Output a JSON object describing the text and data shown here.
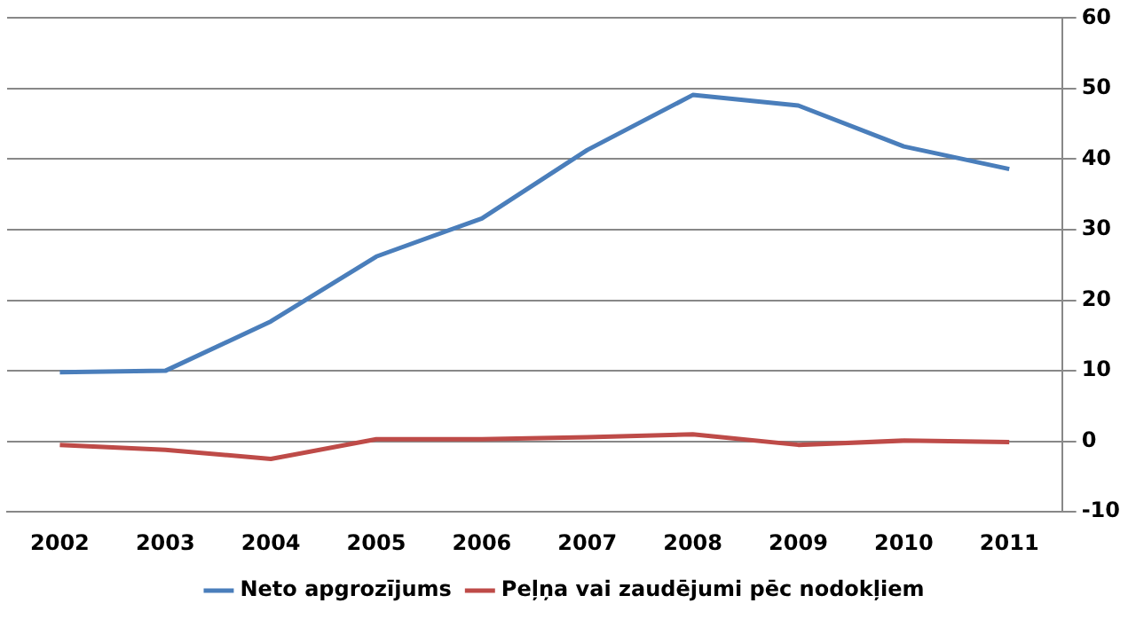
{
  "chart_data": {
    "type": "line",
    "categories": [
      "2002",
      "2003",
      "2004",
      "2005",
      "2006",
      "2007",
      "2008",
      "2009",
      "2010",
      "2011"
    ],
    "series": [
      {
        "name": "Neto apgrozījums",
        "color": "#4a7ebb",
        "values": [
          9.8,
          10,
          17,
          26.2,
          31.6,
          41.3,
          49.1,
          47.6,
          41.8,
          38.6
        ]
      },
      {
        "name": "Peļņa vai zaudējumi pēc nodokļiem",
        "color": "#be4b48",
        "values": [
          -0.5,
          -1.2,
          -2.5,
          0.3,
          0.3,
          0.6,
          1.0,
          -0.5,
          0.1,
          -0.1
        ]
      }
    ],
    "ylim": [
      -10,
      60
    ],
    "yticks": [
      -10,
      0,
      10,
      20,
      30,
      40,
      50,
      60
    ],
    "grid": "y",
    "legend": "bottom",
    "marker": "none",
    "line_style": "solid"
  }
}
